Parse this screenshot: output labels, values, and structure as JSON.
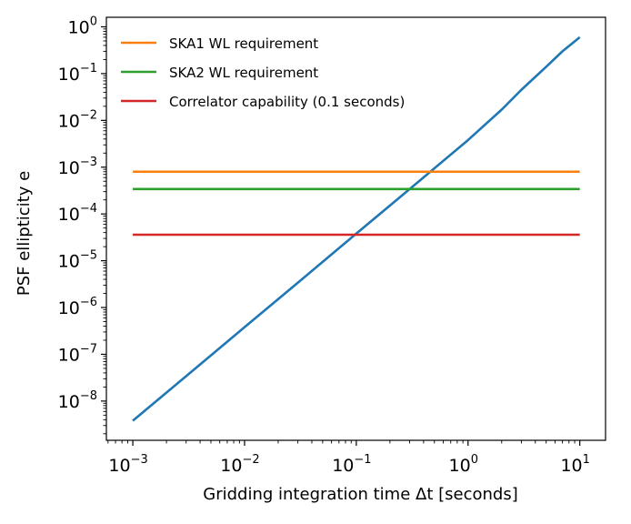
{
  "chart_data": {
    "type": "line",
    "xlabel": "Gridding integration time Δt [seconds]",
    "ylabel": "PSF ellipticity e",
    "xscale": "log",
    "yscale": "log",
    "xlim": [
      0.00058,
      17
    ],
    "ylim": [
      1.45e-09,
      1.6
    ],
    "x_ticks": [
      {
        "value": 0.001,
        "base": "10",
        "exp": "−3"
      },
      {
        "value": 0.01,
        "base": "10",
        "exp": "−2"
      },
      {
        "value": 0.1,
        "base": "10",
        "exp": "−1"
      },
      {
        "value": 1,
        "base": "10",
        "exp": "0"
      },
      {
        "value": 10,
        "base": "10",
        "exp": "1"
      }
    ],
    "y_ticks": [
      {
        "value": 1e-08,
        "base": "10",
        "exp": "−8"
      },
      {
        "value": 1e-07,
        "base": "10",
        "exp": "−7"
      },
      {
        "value": 1e-06,
        "base": "10",
        "exp": "−6"
      },
      {
        "value": 1e-05,
        "base": "10",
        "exp": "−5"
      },
      {
        "value": 0.0001,
        "base": "10",
        "exp": "−4"
      },
      {
        "value": 0.001,
        "base": "10",
        "exp": "−3"
      },
      {
        "value": 0.01,
        "base": "10",
        "exp": "−2"
      },
      {
        "value": 0.1,
        "base": "10",
        "exp": "−1"
      },
      {
        "value": 1,
        "base": "10",
        "exp": "0"
      }
    ],
    "grid": false,
    "legend": "top-left",
    "series": [
      {
        "color": "#1f77b4",
        "x": [
          0.001,
          0.003,
          0.01,
          0.03,
          0.1,
          0.3,
          1,
          2,
          3,
          5,
          7,
          10
        ],
        "y": [
          3.8e-09,
          3.4e-08,
          3.8e-07,
          3.4e-06,
          3.8e-05,
          0.00034,
          0.0038,
          0.017,
          0.045,
          0.14,
          0.3,
          0.6
        ]
      },
      {
        "name": "SKA1 WL requirement",
        "color": "#ff7f0e",
        "x": [
          0.001,
          10
        ],
        "y": [
          0.0008,
          0.0008
        ]
      },
      {
        "name": "SKA2 WL requirement",
        "color": "#2ca02c",
        "x": [
          0.001,
          10
        ],
        "y": [
          0.00034,
          0.00034
        ]
      },
      {
        "name": "Correlator capability (0.1 seconds)",
        "color": "#d62728",
        "x": [
          0.001,
          10
        ],
        "y": [
          3.6e-05,
          3.6e-05
        ]
      }
    ]
  }
}
